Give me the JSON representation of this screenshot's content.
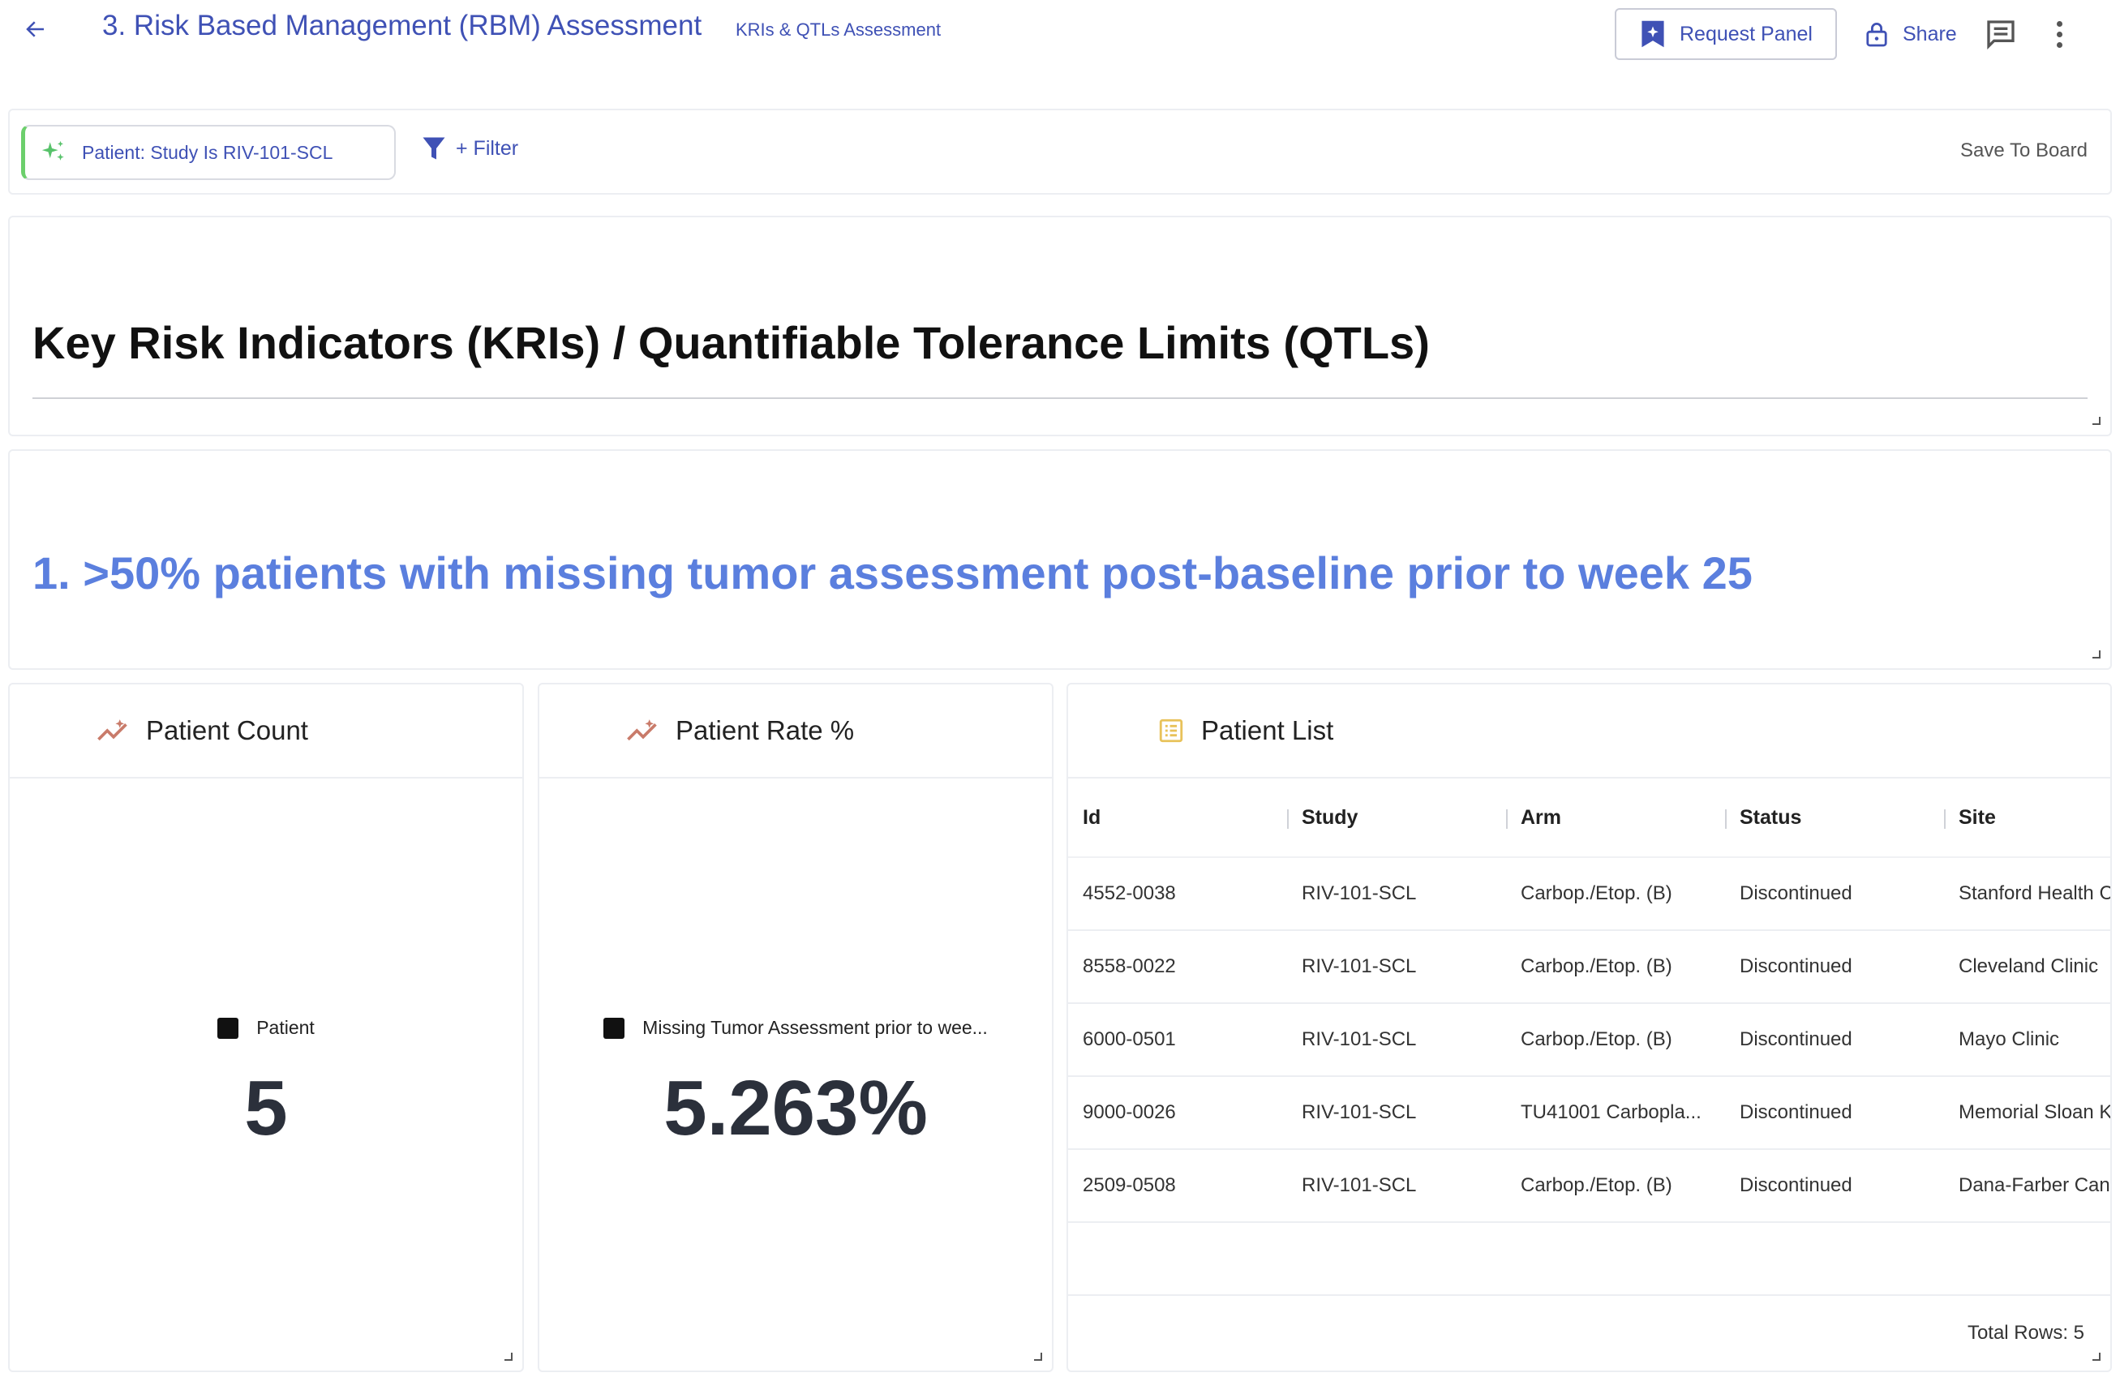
{
  "header": {
    "title": "3. Risk Based Management (RBM) Assessment",
    "subtitle": "KRIs & QTLs Assessment",
    "request_panel_label": "Request Panel",
    "share_label": "Share"
  },
  "filterbar": {
    "chip_label": "Patient: Study Is RIV-101-SCL",
    "add_filter_label": "+ Filter",
    "save_to_board_label": "Save To Board"
  },
  "sections": {
    "kri_title": "Key Risk Indicators (KRIs) / Quantifiable Tolerance Limits (QTLs)",
    "kri1_title": "1. >50% patients with missing tumor assessment post-baseline prior to week 25"
  },
  "widgets": {
    "patient_count": {
      "title": "Patient Count",
      "legend": "Patient",
      "value": "5"
    },
    "patient_rate": {
      "title": "Patient Rate %",
      "legend": "Missing Tumor Assessment prior to wee...",
      "value": "5.263%"
    },
    "patient_list": {
      "title": "Patient List",
      "columns": [
        "Id",
        "Study",
        "Arm",
        "Status",
        "Site"
      ],
      "rows": [
        [
          "4552-0038",
          "RIV-101-SCL",
          "Carbop./Etop. (B)",
          "Discontinued",
          "Stanford Health C"
        ],
        [
          "8558-0022",
          "RIV-101-SCL",
          "Carbop./Etop. (B)",
          "Discontinued",
          "Cleveland Clinic"
        ],
        [
          "6000-0501",
          "RIV-101-SCL",
          "Carbop./Etop. (B)",
          "Discontinued",
          "Mayo Clinic"
        ],
        [
          "9000-0026",
          "RIV-101-SCL",
          "TU41001 Carbopla...",
          "Discontinued",
          "Memorial Sloan K"
        ],
        [
          "2509-0508",
          "RIV-101-SCL",
          "Carbop./Etop. (B)",
          "Discontinued",
          "Dana-Farber Can"
        ]
      ],
      "total_rows": "Total Rows: 5"
    }
  },
  "icons": {
    "back": "arrow-left-icon",
    "request_panel": "sparkle-bookmark-icon",
    "share": "lock-icon",
    "comment": "comment-icon",
    "more": "more-vertical-icon",
    "chip": "sparkles-icon",
    "filter": "funnel-icon",
    "trend": "trend-icon",
    "list": "list-icon"
  },
  "colors": {
    "primary": "#3f51b5",
    "section_heading": "#5b7fde",
    "chip_accent": "#6ccf6c",
    "trend_icon": "#c97b6a",
    "list_icon": "#e8c25a"
  }
}
